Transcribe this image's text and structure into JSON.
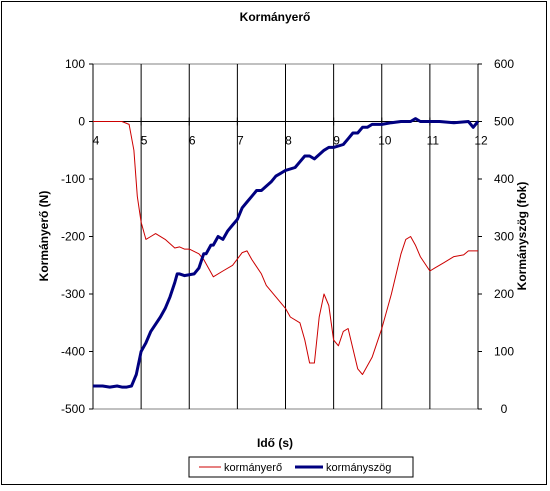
{
  "chart_data": {
    "type": "line",
    "title": "Kormányerő",
    "xlabel": "Idő (s)",
    "ylabel": "Kormányerő (N)",
    "y2label": "Kormányszög (fok)",
    "xlim": [
      4,
      12
    ],
    "ylim": [
      -500,
      100
    ],
    "y2lim": [
      0,
      600
    ],
    "x_ticks": [
      "4",
      "5",
      "6",
      "7",
      "8",
      "9",
      "10",
      "11",
      "12"
    ],
    "y_ticks": [
      "100",
      "0",
      "-100",
      "-200",
      "-300",
      "-400",
      "-500"
    ],
    "y2_ticks": [
      "600",
      "500",
      "400",
      "300",
      "200",
      "100",
      "0"
    ],
    "grid": "vertical",
    "legend_position": "bottom",
    "series": [
      {
        "name": "kormányerő",
        "axis": "left",
        "color": "#cc0000",
        "x": [
          4.0,
          4.3,
          4.6,
          4.75,
          4.85,
          4.92,
          5.0,
          5.1,
          5.2,
          5.3,
          5.5,
          5.7,
          5.8,
          5.9,
          6.0,
          6.2,
          6.3,
          6.4,
          6.5,
          6.7,
          6.9,
          7.1,
          7.2,
          7.3,
          7.5,
          7.6,
          7.8,
          8.0,
          8.1,
          8.3,
          8.4,
          8.5,
          8.6,
          8.7,
          8.8,
          8.9,
          9.0,
          9.1,
          9.2,
          9.3,
          9.4,
          9.5,
          9.6,
          9.8,
          10.0,
          10.2,
          10.4,
          10.5,
          10.6,
          10.7,
          10.8,
          11.0,
          11.1,
          11.3,
          11.5,
          11.7,
          11.8,
          12.0
        ],
        "y": [
          0,
          0,
          0,
          -5,
          -50,
          -130,
          -175,
          -205,
          -200,
          -195,
          -205,
          -220,
          -218,
          -222,
          -222,
          -230,
          -240,
          -255,
          -270,
          -260,
          -250,
          -228,
          -225,
          -240,
          -265,
          -285,
          -305,
          -325,
          -340,
          -350,
          -380,
          -420,
          -420,
          -340,
          -300,
          -320,
          -380,
          -390,
          -365,
          -360,
          -395,
          -430,
          -440,
          -410,
          -360,
          -300,
          -230,
          -205,
          -200,
          -215,
          -235,
          -260,
          -255,
          -245,
          -235,
          -232,
          -225,
          -225
        ]
      },
      {
        "name": "kormányszög",
        "axis": "right",
        "color": "#000080",
        "x": [
          4.0,
          4.2,
          4.35,
          4.5,
          4.6,
          4.7,
          4.8,
          4.9,
          5.0,
          5.1,
          5.2,
          5.4,
          5.5,
          5.6,
          5.7,
          5.75,
          5.8,
          5.9,
          6.1,
          6.2,
          6.3,
          6.35,
          6.45,
          6.5,
          6.6,
          6.7,
          6.8,
          6.9,
          7.0,
          7.1,
          7.2,
          7.3,
          7.4,
          7.5,
          7.7,
          7.8,
          7.9,
          8.0,
          8.2,
          8.3,
          8.4,
          8.5,
          8.6,
          8.8,
          8.9,
          9.0,
          9.2,
          9.3,
          9.4,
          9.5,
          9.6,
          9.7,
          9.8,
          10.0,
          10.2,
          10.4,
          10.5,
          10.6,
          10.7,
          10.8,
          11.0,
          11.2,
          11.5,
          11.8,
          11.9,
          12.0
        ],
        "y": [
          40,
          40,
          38,
          40,
          38,
          38,
          40,
          60,
          100,
          115,
          135,
          160,
          175,
          195,
          220,
          235,
          235,
          232,
          235,
          245,
          270,
          270,
          285,
          285,
          300,
          295,
          310,
          320,
          330,
          350,
          360,
          370,
          380,
          380,
          395,
          405,
          410,
          415,
          420,
          430,
          440,
          440,
          435,
          450,
          455,
          455,
          460,
          470,
          480,
          480,
          490,
          490,
          495,
          495,
          498,
          500,
          500,
          500,
          505,
          500,
          500,
          500,
          498,
          500,
          490,
          500
        ]
      }
    ]
  }
}
